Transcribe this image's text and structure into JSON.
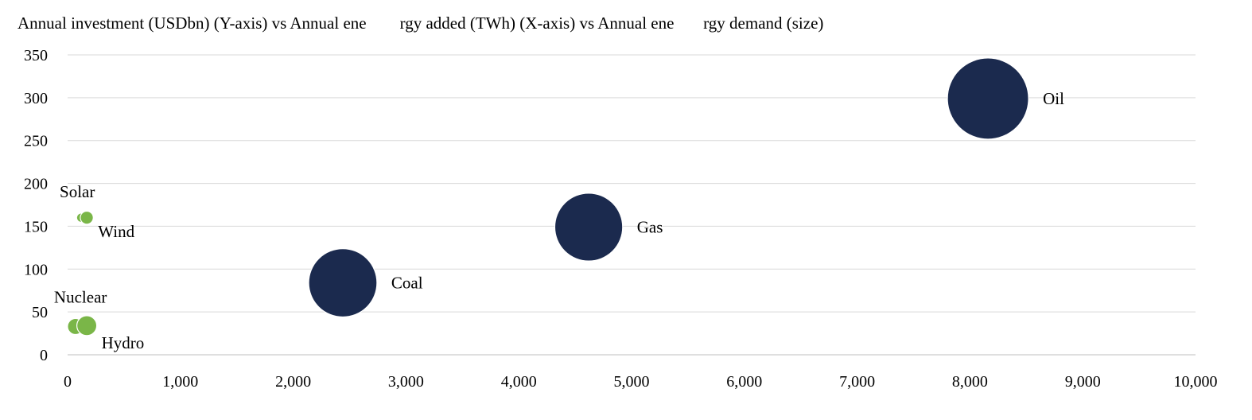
{
  "chart_data": {
    "type": "bubble",
    "title": "Annual investment (USDbn) (Y-axis) vs Annual ene        rgy added (TWh) (X-axis) vs Annual ene       rgy demand (size)",
    "xlabel": "",
    "ylabel": "",
    "xlim": [
      0,
      10000
    ],
    "ylim": [
      0,
      350
    ],
    "x_ticks": [
      0,
      1000,
      2000,
      3000,
      4000,
      5000,
      6000,
      7000,
      8000,
      9000,
      10000
    ],
    "x_tick_labels": [
      "0",
      "1,000",
      "2,000",
      "3,000",
      "4,000",
      "5,000",
      "6,000",
      "7,000",
      "8,000",
      "9,000",
      "10,000"
    ],
    "y_ticks": [
      0,
      50,
      100,
      150,
      200,
      250,
      300,
      350
    ],
    "y_tick_labels": [
      "0",
      "50",
      "100",
      "150",
      "200",
      "250",
      "300",
      "350"
    ],
    "grid": "horizontal",
    "legend": "none",
    "colors": {
      "renewable": "#7ab648",
      "fossil": "#1b2a4e",
      "grid": "#d9d9d9"
    },
    "points": [
      {
        "name": "Solar",
        "x": 120,
        "y": 160,
        "size": 3,
        "group": "renewable",
        "label_pos": "above-left"
      },
      {
        "name": "Wind",
        "x": 170,
        "y": 160,
        "size": 6,
        "group": "renewable",
        "label_pos": "below-right"
      },
      {
        "name": "Nuclear",
        "x": 70,
        "y": 33,
        "size": 9,
        "group": "renewable",
        "label_pos": "above-left"
      },
      {
        "name": "Hydro",
        "x": 170,
        "y": 34,
        "size": 14,
        "group": "renewable",
        "label_pos": "below-right"
      },
      {
        "name": "Coal",
        "x": 2440,
        "y": 84,
        "size": 165,
        "group": "fossil",
        "label_pos": "right"
      },
      {
        "name": "Gas",
        "x": 4620,
        "y": 149,
        "size": 163,
        "group": "fossil",
        "label_pos": "right"
      },
      {
        "name": "Oil",
        "x": 8160,
        "y": 299,
        "size": 233,
        "group": "fossil",
        "label_pos": "right"
      }
    ]
  }
}
